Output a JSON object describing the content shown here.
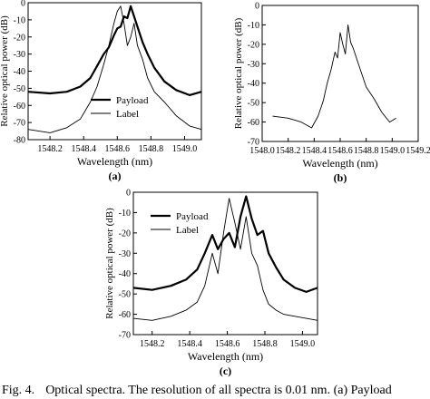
{
  "figure": {
    "caption_label": "Fig. 4.",
    "caption_text": "Optical spectra. The resolution of all spectra is 0.01 nm. (a) Payload"
  },
  "chart_data": [
    {
      "panel": "(a)",
      "type": "line",
      "xlabel": "Wavelength (nm)",
      "ylabel": "Relative optical power (dB)",
      "xlim": [
        1548.07,
        1549.1
      ],
      "ylim": [
        -80,
        0
      ],
      "xticks": [
        "1548.2",
        "1548.4",
        "1548.6",
        "1548.8",
        "1549.0"
      ],
      "yticks": [
        "0",
        "-10",
        "-20",
        "-30",
        "-40",
        "-50",
        "-60",
        "-70",
        "-80"
      ],
      "grid": false,
      "legend": "bottom-center",
      "series": [
        {
          "name": "Payload",
          "style": "bold",
          "x": [
            1548.07,
            1548.2,
            1548.3,
            1548.38,
            1548.44,
            1548.48,
            1548.52,
            1548.55,
            1548.58,
            1548.6,
            1548.62,
            1548.64,
            1548.66,
            1548.68,
            1548.7,
            1548.72,
            1548.75,
            1548.78,
            1548.82,
            1548.88,
            1548.95,
            1549.03,
            1549.1
          ],
          "y": [
            -52,
            -53,
            -52,
            -49,
            -44,
            -37,
            -30,
            -26,
            -19,
            -15,
            -14,
            -8,
            -9,
            -2,
            -8,
            -14,
            -23,
            -30,
            -38,
            -46,
            -51,
            -54,
            -52
          ]
        },
        {
          "name": "Label",
          "style": "thin",
          "x": [
            1548.07,
            1548.2,
            1548.3,
            1548.38,
            1548.44,
            1548.48,
            1548.52,
            1548.55,
            1548.58,
            1548.6,
            1548.62,
            1548.64,
            1548.66,
            1548.68,
            1548.7,
            1548.72,
            1548.75,
            1548.78,
            1548.82,
            1548.88,
            1548.95,
            1549.03,
            1549.1
          ],
          "y": [
            -74,
            -76,
            -73,
            -68,
            -58,
            -49,
            -36,
            -25,
            -12,
            -5,
            -2,
            -12,
            -25,
            -20,
            -12,
            -25,
            -33,
            -44,
            -52,
            -58,
            -66,
            -72,
            -74
          ]
        }
      ]
    },
    {
      "panel": "(b)",
      "type": "line",
      "xlabel": "Wavelength (nm)",
      "ylabel": "Relative optical power (dB)",
      "xlim": [
        1548.0,
        1549.2
      ],
      "ylim": [
        -70,
        0
      ],
      "xticks": [
        "1548.0",
        "1548.2",
        "1548.4",
        "1548.6",
        "1548.8",
        "1549.0",
        "1549.2"
      ],
      "yticks": [
        "0",
        "-10",
        "-20",
        "-30",
        "-40",
        "-50",
        "-60",
        "-70"
      ],
      "grid": false,
      "series": [
        {
          "name": "",
          "style": "thin",
          "x": [
            1548.08,
            1548.2,
            1548.3,
            1548.38,
            1548.43,
            1548.47,
            1548.5,
            1548.53,
            1548.56,
            1548.58,
            1548.6,
            1548.62,
            1548.64,
            1548.66,
            1548.68,
            1548.7,
            1548.73,
            1548.76,
            1548.8,
            1548.86,
            1548.92,
            1548.98,
            1549.03
          ],
          "y": [
            -57,
            -58,
            -60,
            -63,
            -57,
            -49,
            -40,
            -33,
            -24,
            -27,
            -14,
            -20,
            -25,
            -10,
            -19,
            -22,
            -28,
            -34,
            -42,
            -48,
            -55,
            -60,
            -58
          ]
        }
      ]
    },
    {
      "panel": "(c)",
      "type": "line",
      "xlabel": "Wavelength (nm)",
      "ylabel": "Relative optical power (dB)",
      "xlim": [
        1548.1,
        1549.08
      ],
      "ylim": [
        -70,
        0
      ],
      "xticks": [
        "1548.2",
        "1548.4",
        "1548.6",
        "1548.8",
        "1549.0"
      ],
      "yticks": [
        "0",
        "-10",
        "-20",
        "-30",
        "-40",
        "-50",
        "-60",
        "-70"
      ],
      "grid": false,
      "legend": "top-center",
      "series": [
        {
          "name": "Payload",
          "style": "bold",
          "x": [
            1548.1,
            1548.2,
            1548.3,
            1548.38,
            1548.44,
            1548.48,
            1548.52,
            1548.55,
            1548.58,
            1548.61,
            1548.64,
            1548.67,
            1548.7,
            1548.73,
            1548.76,
            1548.79,
            1548.82,
            1548.86,
            1548.9,
            1548.96,
            1549.02,
            1549.08
          ],
          "y": [
            -47,
            -48,
            -46,
            -43,
            -38,
            -30,
            -21,
            -28,
            -23,
            -20,
            -27,
            -12,
            -2,
            -13,
            -21,
            -19,
            -30,
            -37,
            -43,
            -47,
            -49,
            -47
          ]
        },
        {
          "name": "Label",
          "style": "thin",
          "x": [
            1548.1,
            1548.2,
            1548.3,
            1548.38,
            1548.44,
            1548.48,
            1548.52,
            1548.55,
            1548.58,
            1548.61,
            1548.64,
            1548.67,
            1548.7,
            1548.73,
            1548.76,
            1548.79,
            1548.82,
            1548.86,
            1548.9,
            1548.96,
            1549.02,
            1549.08
          ],
          "y": [
            -62,
            -63,
            -61,
            -58,
            -54,
            -46,
            -30,
            -40,
            -20,
            -3,
            -15,
            -28,
            -12,
            -30,
            -36,
            -48,
            -55,
            -58,
            -60,
            -61,
            -62,
            -63
          ]
        }
      ]
    }
  ]
}
